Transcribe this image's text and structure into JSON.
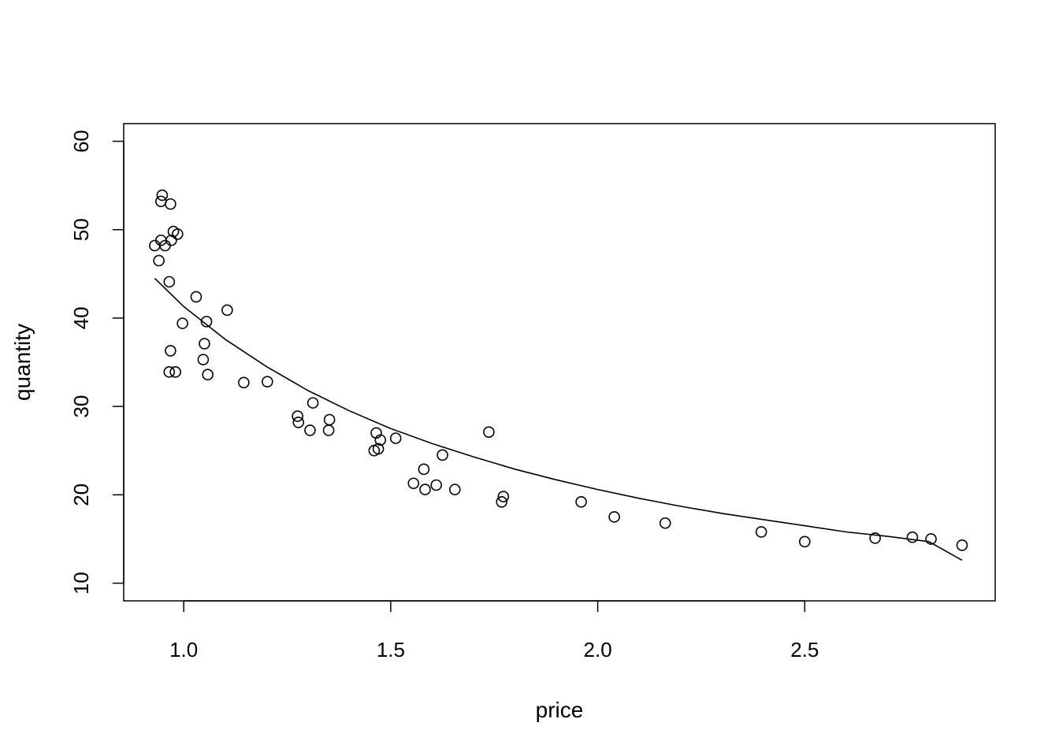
{
  "chart_data": {
    "type": "scatter",
    "title": "",
    "xlabel": "price",
    "ylabel": "quantity",
    "xlim": [
      0.855,
      2.96
    ],
    "ylim": [
      8.0,
      62.0
    ],
    "xticks": [
      1.0,
      1.5,
      2.0,
      2.5
    ],
    "xtick_labels": [
      "1.0",
      "1.5",
      "2.0",
      "2.5"
    ],
    "yticks": [
      10,
      20,
      30,
      40,
      50,
      60
    ],
    "ytick_labels": [
      "10",
      "20",
      "30",
      "40",
      "50",
      "60"
    ],
    "grid": false,
    "legend": "none",
    "points": [
      {
        "x": 0.93,
        "y": 48.2
      },
      {
        "x": 0.94,
        "y": 46.5
      },
      {
        "x": 0.945,
        "y": 48.8
      },
      {
        "x": 0.945,
        "y": 53.2
      },
      {
        "x": 0.948,
        "y": 53.9
      },
      {
        "x": 0.955,
        "y": 48.2
      },
      {
        "x": 0.965,
        "y": 44.1
      },
      {
        "x": 0.965,
        "y": 33.9
      },
      {
        "x": 0.968,
        "y": 52.9
      },
      {
        "x": 0.968,
        "y": 36.3
      },
      {
        "x": 0.97,
        "y": 48.8
      },
      {
        "x": 0.975,
        "y": 49.8
      },
      {
        "x": 0.98,
        "y": 33.9
      },
      {
        "x": 0.985,
        "y": 49.5
      },
      {
        "x": 0.997,
        "y": 39.4
      },
      {
        "x": 1.03,
        "y": 42.4
      },
      {
        "x": 1.047,
        "y": 35.3
      },
      {
        "x": 1.05,
        "y": 37.1
      },
      {
        "x": 1.055,
        "y": 39.6
      },
      {
        "x": 1.058,
        "y": 33.6
      },
      {
        "x": 1.105,
        "y": 40.9
      },
      {
        "x": 1.145,
        "y": 32.7
      },
      {
        "x": 1.202,
        "y": 32.8
      },
      {
        "x": 1.275,
        "y": 28.9
      },
      {
        "x": 1.277,
        "y": 28.2
      },
      {
        "x": 1.305,
        "y": 27.3
      },
      {
        "x": 1.312,
        "y": 30.4
      },
      {
        "x": 1.35,
        "y": 27.3
      },
      {
        "x": 1.352,
        "y": 28.5
      },
      {
        "x": 1.46,
        "y": 25.0
      },
      {
        "x": 1.465,
        "y": 27.0
      },
      {
        "x": 1.47,
        "y": 25.2
      },
      {
        "x": 1.475,
        "y": 26.2
      },
      {
        "x": 1.512,
        "y": 26.4
      },
      {
        "x": 1.555,
        "y": 21.3
      },
      {
        "x": 1.58,
        "y": 22.9
      },
      {
        "x": 1.583,
        "y": 20.6
      },
      {
        "x": 1.61,
        "y": 21.1
      },
      {
        "x": 1.625,
        "y": 24.5
      },
      {
        "x": 1.655,
        "y": 20.6
      },
      {
        "x": 1.737,
        "y": 27.1
      },
      {
        "x": 1.768,
        "y": 19.2
      },
      {
        "x": 1.772,
        "y": 19.8
      },
      {
        "x": 1.96,
        "y": 19.2
      },
      {
        "x": 2.04,
        "y": 17.5
      },
      {
        "x": 2.163,
        "y": 16.8
      },
      {
        "x": 2.395,
        "y": 15.8
      },
      {
        "x": 2.5,
        "y": 14.7
      },
      {
        "x": 2.67,
        "y": 15.1
      },
      {
        "x": 2.76,
        "y": 15.2
      },
      {
        "x": 2.805,
        "y": 15.0
      },
      {
        "x": 2.88,
        "y": 14.3
      }
    ],
    "fit_line": {
      "x": [
        0.93,
        1.0,
        1.1,
        1.2,
        1.3,
        1.4,
        1.5,
        1.6,
        1.7,
        1.8,
        1.9,
        2.0,
        2.1,
        2.2,
        2.3,
        2.4,
        2.5,
        2.6,
        2.7,
        2.8,
        2.88
      ],
      "y": [
        44.5,
        41.3,
        37.6,
        34.5,
        31.8,
        29.5,
        27.5,
        25.8,
        24.3,
        22.9,
        21.7,
        20.6,
        19.6,
        18.7,
        17.9,
        17.2,
        16.5,
        15.8,
        15.3,
        14.7,
        12.6
      ]
    }
  }
}
